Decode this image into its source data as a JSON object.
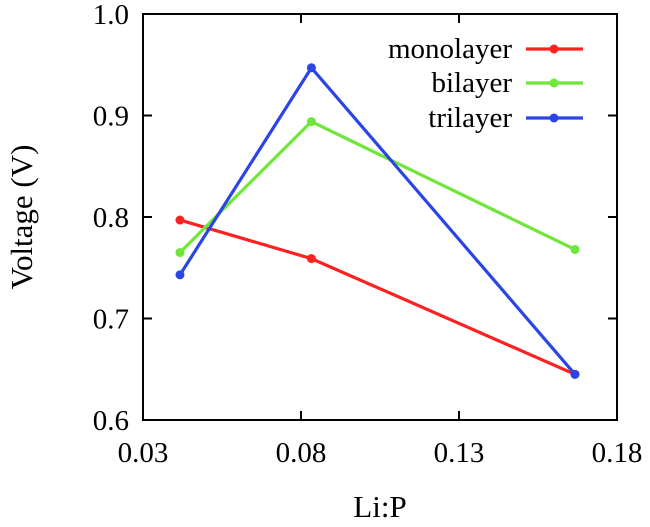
{
  "chart_data": {
    "type": "line",
    "xlabel": "Li:P",
    "ylabel": "Voltage (V)",
    "xlim": [
      0.03,
      0.18
    ],
    "ylim": [
      0.6,
      1.0
    ],
    "xticks": [
      "0.03",
      "0.08",
      "0.13",
      "0.18"
    ],
    "yticks": [
      "0.6",
      "0.7",
      "0.8",
      "0.9",
      "1.0"
    ],
    "grid": false,
    "legend_position": "top-right",
    "series": [
      {
        "name": "monolayer",
        "color": "#ff2020",
        "x": [
          0.0417,
          0.0833,
          0.1667
        ],
        "y": [
          0.797,
          0.759,
          0.645
        ]
      },
      {
        "name": "bilayer",
        "color": "#6ee63a",
        "x": [
          0.0417,
          0.0833,
          0.1667
        ],
        "y": [
          0.765,
          0.894,
          0.768
        ]
      },
      {
        "name": "trilayer",
        "color": "#2a44e6",
        "x": [
          0.0417,
          0.0833,
          0.1667
        ],
        "y": [
          0.743,
          0.947,
          0.645
        ]
      }
    ]
  }
}
